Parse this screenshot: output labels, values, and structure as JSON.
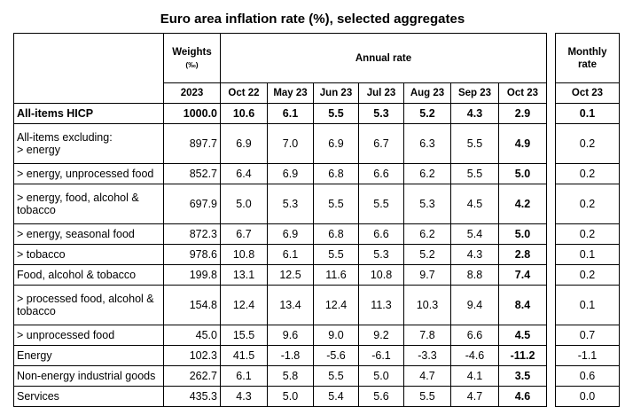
{
  "title": "Euro area inflation rate (%), selected aggregates",
  "headers": {
    "weights_l1": "Weights",
    "weights_l2": "(‰)",
    "annual": "Annual rate",
    "monthly_l1": "Monthly",
    "monthly_l2": "rate",
    "weights_year": "2023",
    "months": [
      "Oct 22",
      "May 23",
      "Jun 23",
      "Jul 23",
      "Aug 23",
      "Sep 23",
      "Oct 23"
    ],
    "monthly_month": "Oct 23"
  },
  "rows": [
    {
      "label": "All-items HICP",
      "weight": "1000.0",
      "values": [
        "10.6",
        "6.1",
        "5.5",
        "5.3",
        "5.2",
        "4.3",
        "2.9"
      ],
      "monthly": "0.1"
    },
    {
      "label_line1": "All-items excluding:",
      "label_line2": "> energy",
      "weight": "897.7",
      "values": [
        "6.9",
        "7.0",
        "6.9",
        "6.7",
        "6.3",
        "5.5",
        "4.9"
      ],
      "monthly": "0.2"
    },
    {
      "label": "> energy, unprocessed food",
      "weight": "852.7",
      "values": [
        "6.4",
        "6.9",
        "6.8",
        "6.6",
        "6.2",
        "5.5",
        "5.0"
      ],
      "monthly": "0.2"
    },
    {
      "label_line1": "> energy, food, alcohol &",
      "label_line2": "tobacco",
      "weight": "697.9",
      "values": [
        "5.0",
        "5.3",
        "5.5",
        "5.5",
        "5.3",
        "4.5",
        "4.2"
      ],
      "monthly": "0.2"
    },
    {
      "label": "> energy, seasonal food",
      "weight": "872.3",
      "values": [
        "6.7",
        "6.9",
        "6.8",
        "6.6",
        "6.2",
        "5.4",
        "5.0"
      ],
      "monthly": "0.2"
    },
    {
      "label": "> tobacco",
      "weight": "978.6",
      "values": [
        "10.8",
        "6.1",
        "5.5",
        "5.3",
        "5.2",
        "4.3",
        "2.8"
      ],
      "monthly": "0.1"
    },
    {
      "label": "Food, alcohol & tobacco",
      "weight": "199.8",
      "values": [
        "13.1",
        "12.5",
        "11.6",
        "10.8",
        "9.7",
        "8.8",
        "7.4"
      ],
      "monthly": "0.2"
    },
    {
      "label_line1": "> processed food, alcohol &",
      "label_line2": "tobacco",
      "weight": "154.8",
      "values": [
        "12.4",
        "13.4",
        "12.4",
        "11.3",
        "10.3",
        "9.4",
        "8.4"
      ],
      "monthly": "0.1"
    },
    {
      "label": "> unprocessed food",
      "weight": "45.0",
      "values": [
        "15.5",
        "9.6",
        "9.0",
        "9.2",
        "7.8",
        "6.6",
        "4.5"
      ],
      "monthly": "0.7"
    },
    {
      "label": "Energy",
      "weight": "102.3",
      "values": [
        "41.5",
        "-1.8",
        "-5.6",
        "-6.1",
        "-3.3",
        "-4.6",
        "-11.2"
      ],
      "monthly": "-1.1"
    },
    {
      "label": "Non-energy industrial goods",
      "weight": "262.7",
      "values": [
        "6.1",
        "5.8",
        "5.5",
        "5.0",
        "4.7",
        "4.1",
        "3.5"
      ],
      "monthly": "0.6"
    },
    {
      "label": "Services",
      "weight": "435.3",
      "values": [
        "4.3",
        "5.0",
        "5.4",
        "5.6",
        "5.5",
        "4.7",
        "4.6"
      ],
      "monthly": "0.0"
    }
  ]
}
